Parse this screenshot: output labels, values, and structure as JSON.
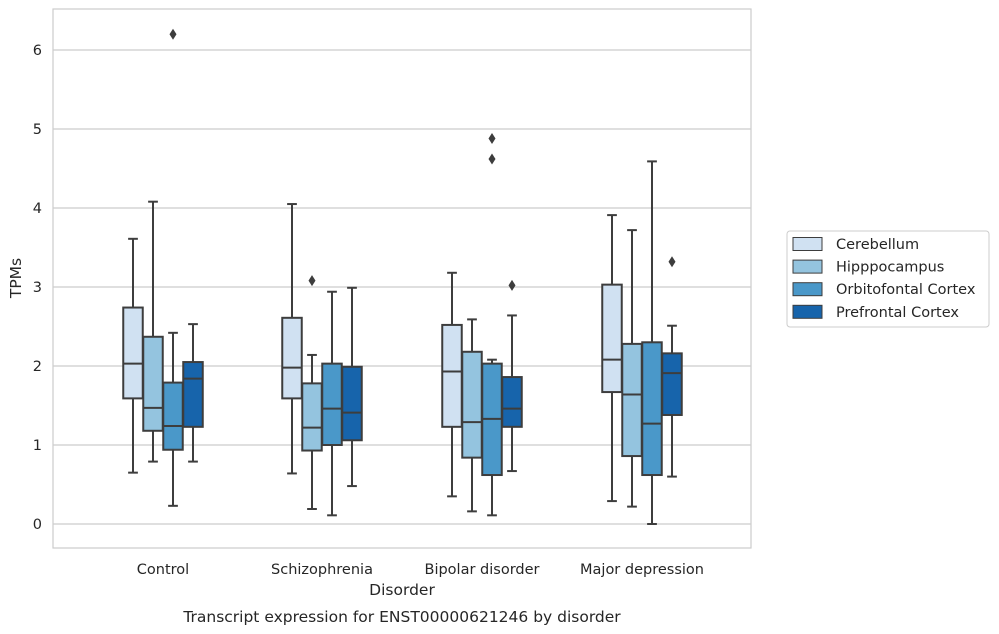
{
  "chart_data": {
    "type": "box",
    "caption": "Transcript expression for ENST00000621246 by disorder",
    "xlabel": "Disorder",
    "ylabel": "TPMs",
    "ylim": [
      -0.3,
      6.5
    ],
    "yticks": [
      0,
      1,
      2,
      3,
      4,
      5,
      6
    ],
    "grid": "horizontal",
    "legend_position": "right",
    "categories": [
      "Control",
      "Schizophrenia",
      "Bipolar disorder",
      "Major depression"
    ],
    "series": [
      {
        "name": "Cerebellum",
        "color": "#d0e1f2",
        "boxes": [
          {
            "whislo": 0.65,
            "q1": 1.59,
            "med": 2.03,
            "q3": 2.74,
            "whishi": 3.61,
            "fliers": []
          },
          {
            "whislo": 0.64,
            "q1": 1.59,
            "med": 1.98,
            "q3": 2.61,
            "whishi": 4.05,
            "fliers": []
          },
          {
            "whislo": 0.35,
            "q1": 1.23,
            "med": 1.93,
            "q3": 2.52,
            "whishi": 3.18,
            "fliers": []
          },
          {
            "whislo": 0.29,
            "q1": 1.67,
            "med": 2.08,
            "q3": 3.03,
            "whishi": 3.91,
            "fliers": []
          }
        ]
      },
      {
        "name": "Hipppocampus",
        "color": "#94c4df",
        "boxes": [
          {
            "whislo": 0.79,
            "q1": 1.18,
            "med": 1.47,
            "q3": 2.37,
            "whishi": 4.08,
            "fliers": []
          },
          {
            "whislo": 0.19,
            "q1": 0.93,
            "med": 1.22,
            "q3": 1.78,
            "whishi": 2.14,
            "fliers": [
              3.08
            ]
          },
          {
            "whislo": 0.16,
            "q1": 0.84,
            "med": 1.29,
            "q3": 2.18,
            "whishi": 2.59,
            "fliers": []
          },
          {
            "whislo": 0.22,
            "q1": 0.86,
            "med": 1.64,
            "q3": 2.28,
            "whishi": 3.72,
            "fliers": []
          }
        ]
      },
      {
        "name": "Orbitofontal Cortex",
        "color": "#4a98c9",
        "boxes": [
          {
            "whislo": 0.23,
            "q1": 0.94,
            "med": 1.24,
            "q3": 1.79,
            "whishi": 2.42,
            "fliers": [
              6.2
            ]
          },
          {
            "whislo": 0.11,
            "q1": 1.0,
            "med": 1.46,
            "q3": 2.03,
            "whishi": 2.94,
            "fliers": []
          },
          {
            "whislo": 0.11,
            "q1": 0.62,
            "med": 1.33,
            "q3": 2.03,
            "whishi": 2.08,
            "fliers": [
              4.88,
              4.62
            ]
          },
          {
            "whislo": 0.0,
            "q1": 0.62,
            "med": 1.27,
            "q3": 2.3,
            "whishi": 4.59,
            "fliers": []
          }
        ]
      },
      {
        "name": "Prefrontal Cortex",
        "color": "#1764ab",
        "boxes": [
          {
            "whislo": 0.79,
            "q1": 1.23,
            "med": 1.84,
            "q3": 2.05,
            "whishi": 2.53,
            "fliers": []
          },
          {
            "whislo": 0.48,
            "q1": 1.06,
            "med": 1.41,
            "q3": 1.99,
            "whishi": 2.99,
            "fliers": []
          },
          {
            "whislo": 0.67,
            "q1": 1.23,
            "med": 1.46,
            "q3": 1.86,
            "whishi": 2.64,
            "fliers": [
              3.02
            ]
          },
          {
            "whislo": 0.6,
            "q1": 1.38,
            "med": 1.91,
            "q3": 2.16,
            "whishi": 2.51,
            "fliers": [
              3.32
            ]
          }
        ]
      }
    ]
  }
}
